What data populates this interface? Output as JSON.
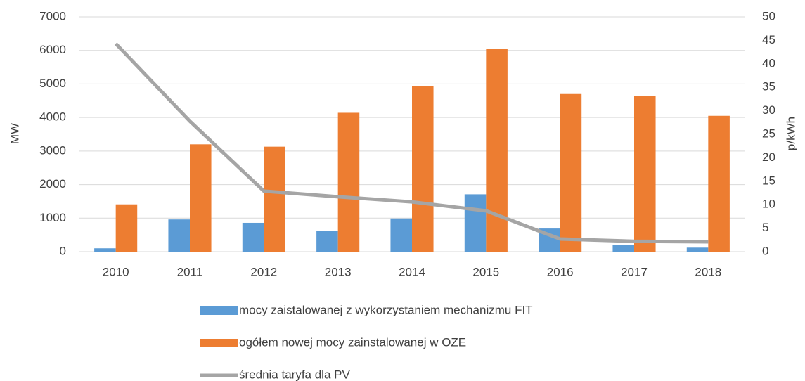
{
  "chart_data": {
    "type": "bar",
    "categories": [
      "2010",
      "2011",
      "2012",
      "2013",
      "2014",
      "2015",
      "2016",
      "2017",
      "2018"
    ],
    "series": [
      {
        "name": "mocy zaistalowanej z wykorzystaniem mechanizmu FIT",
        "color": "#5b9bd5",
        "values": [
          100,
          960,
          860,
          620,
          990,
          1710,
          690,
          190,
          120
        ]
      },
      {
        "name": "ogółem nowej mocy zainstalowanej w OZE",
        "color": "#ed7d31",
        "values": [
          1410,
          3200,
          3130,
          4140,
          4940,
          6050,
          4700,
          4640,
          4050
        ]
      },
      {
        "name": "średnia taryfa dla PV",
        "color": "#a5a5a5",
        "type": "line",
        "axis": "y2",
        "values": [
          44.3,
          27.8,
          12.9,
          11.7,
          10.6,
          8.7,
          2.7,
          2.2,
          2.1
        ]
      }
    ],
    "ylabel": "MW",
    "y2label": "p/kWh",
    "ylim": [
      0,
      7000
    ],
    "yticks": [
      0,
      1000,
      2000,
      3000,
      4000,
      5000,
      6000,
      7000
    ],
    "y2lim": [
      0,
      50
    ],
    "y2ticks": [
      0,
      5,
      10,
      15,
      20,
      25,
      30,
      35,
      40,
      45,
      50
    ],
    "grid": true,
    "legend": "bottom"
  }
}
